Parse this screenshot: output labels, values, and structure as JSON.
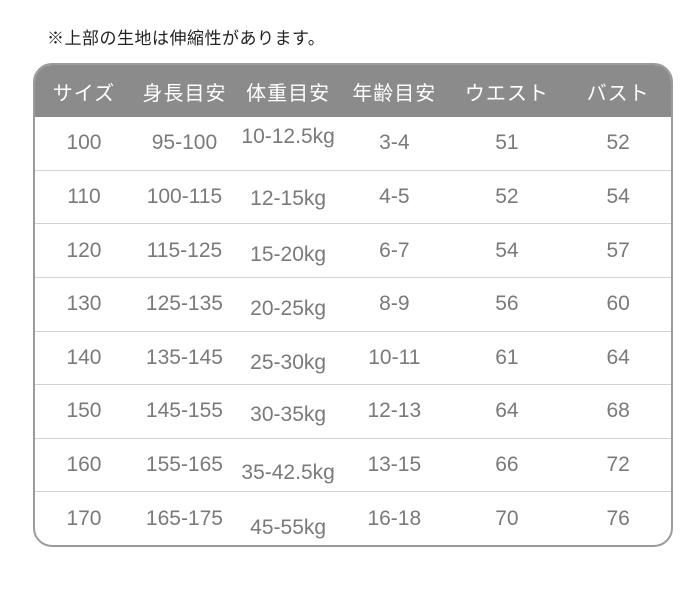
{
  "note": "※上部の生地は伸縮性があります。",
  "table": {
    "headers": [
      "サイズ",
      "身長目安",
      "体重目安",
      "年齢目安",
      "ウエスト",
      "バスト"
    ],
    "rows": [
      [
        "100",
        "95-100",
        "10-12.5kg",
        "3-4",
        "51",
        "52"
      ],
      [
        "110",
        "100-115",
        "12-15kg",
        "4-5",
        "52",
        "54"
      ],
      [
        "120",
        "115-125",
        "15-20kg",
        "6-7",
        "54",
        "57"
      ],
      [
        "130",
        "125-135",
        "20-25kg",
        "8-9",
        "56",
        "60"
      ],
      [
        "140",
        "135-145",
        "25-30kg",
        "10-11",
        "61",
        "64"
      ],
      [
        "150",
        "145-155",
        "30-35kg",
        "12-13",
        "64",
        "68"
      ],
      [
        "160",
        "155-165",
        "35-42.5kg",
        "13-15",
        "66",
        "72"
      ],
      [
        "170",
        "165-175",
        "45-55kg",
        "16-18",
        "70",
        "76"
      ]
    ]
  },
  "colors": {
    "background": "#ffffff",
    "note_text": "#222222",
    "header_bg": "#8b8b8b",
    "header_text": "#ffffff",
    "body_text": "#7a7a7a",
    "divider": "#d2d2d2",
    "table_border": "#9b9b9b"
  }
}
